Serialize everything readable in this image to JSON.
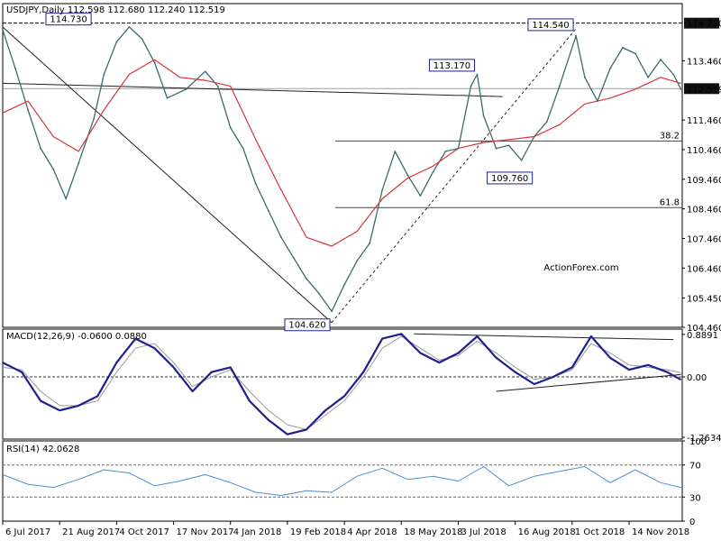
{
  "chart_data": [
    {
      "panel": "price",
      "type": "line",
      "title": "USDJPY,Daily",
      "ohlc_readout": [
        "112.598",
        "112.680",
        "112.240",
        "112.519"
      ],
      "watermark": "ActionForex.com",
      "ylim": [
        104.46,
        115.39
      ],
      "y_ticks": [
        "114.730",
        "113.460",
        "112.519",
        "111.460",
        "110.460",
        "109.460",
        "108.460",
        "107.460",
        "106.460",
        "105.450",
        "104.460"
      ],
      "y_tick_values": [
        114.73,
        113.46,
        112.519,
        111.46,
        110.46,
        109.46,
        108.46,
        107.46,
        106.46,
        105.45,
        104.46
      ],
      "highlighted_ticks": [
        "114.730",
        "112.519"
      ],
      "current_price": 112.519,
      "resistance_line": 114.73,
      "fib_levels": [
        {
          "label": "38.2",
          "value": 110.75
        },
        {
          "label": "61.8",
          "value": 108.5
        }
      ],
      "annotations": [
        {
          "label": "114.730",
          "date_index": 72,
          "value": 114.73
        },
        {
          "label": "104.620",
          "date_index": 260,
          "value": 104.62
        },
        {
          "label": "113.170",
          "date_index": 375,
          "value": 113.17
        },
        {
          "label": "109.760",
          "date_index": 410,
          "value": 109.76
        },
        {
          "label": "114.540",
          "date_index": 453,
          "value": 114.54
        }
      ],
      "series": [
        {
          "name": "price",
          "x": [
            0,
            10,
            20,
            30,
            40,
            50,
            60,
            72,
            80,
            90,
            100,
            110,
            120,
            130,
            145,
            160,
            170,
            180,
            190,
            200,
            210,
            220,
            230,
            240,
            250,
            260,
            270,
            280,
            290,
            300,
            310,
            320,
            330,
            340,
            350,
            360,
            370,
            375,
            380,
            390,
            400,
            410,
            420,
            430,
            440,
            453,
            460,
            470,
            480,
            490,
            500,
            510,
            520,
            530,
            536
          ],
          "values": [
            114.5,
            113.2,
            111.8,
            110.5,
            109.8,
            108.8,
            110.0,
            111.5,
            113.0,
            114.1,
            114.6,
            114.2,
            113.4,
            112.2,
            112.5,
            113.1,
            112.6,
            111.2,
            110.5,
            109.3,
            108.4,
            107.5,
            106.8,
            106.1,
            105.6,
            105.0,
            105.9,
            106.7,
            107.3,
            109.1,
            110.4,
            109.6,
            108.9,
            109.7,
            110.4,
            110.5,
            112.6,
            113.0,
            111.6,
            110.5,
            110.6,
            110.1,
            110.9,
            111.4,
            112.6,
            114.3,
            112.9,
            112.1,
            113.2,
            113.9,
            113.7,
            112.9,
            113.5,
            113.0,
            112.5
          ]
        },
        {
          "name": "SMA",
          "x": [
            0,
            20,
            40,
            60,
            80,
            100,
            120,
            140,
            160,
            180,
            200,
            220,
            240,
            260,
            280,
            300,
            320,
            340,
            360,
            380,
            400,
            420,
            440,
            460,
            480,
            500,
            520,
            536
          ],
          "values": [
            111.7,
            112.1,
            110.9,
            110.4,
            111.8,
            113.0,
            113.5,
            112.9,
            112.8,
            112.6,
            110.8,
            109.1,
            107.5,
            107.2,
            107.7,
            108.8,
            109.5,
            109.9,
            110.5,
            110.7,
            110.8,
            110.9,
            111.3,
            112.0,
            112.2,
            112.5,
            112.9,
            112.7
          ]
        }
      ],
      "trendlines": [
        {
          "name": "upper channel",
          "from": [
            0,
            112.7
          ],
          "to": [
            395,
            112.25
          ]
        },
        {
          "name": "lower channel",
          "from": [
            0,
            114.6
          ],
          "to": [
            260,
            104.62
          ]
        },
        {
          "name": "rising trend (dashed)",
          "from": [
            260,
            104.62
          ],
          "to": [
            453,
            114.54
          ]
        }
      ]
    },
    {
      "panel": "macd",
      "type": "line",
      "title": "MACD(12,26,9) -0.0600 0.0880",
      "ylim": [
        -1.3,
        1.0
      ],
      "y_ticks": [
        "0.8891",
        "0.00",
        "-1.2634"
      ],
      "y_tick_values": [
        0.8891,
        0.0,
        -1.2634
      ],
      "series": [
        {
          "name": "MACD",
          "x": [
            0,
            15,
            30,
            45,
            60,
            75,
            90,
            105,
            120,
            135,
            150,
            165,
            180,
            195,
            210,
            225,
            240,
            255,
            270,
            285,
            300,
            315,
            330,
            345,
            360,
            375,
            390,
            405,
            420,
            435,
            450,
            465,
            480,
            495,
            510,
            525,
            536
          ],
          "values": [
            0.3,
            0.1,
            -0.5,
            -0.7,
            -0.6,
            -0.4,
            0.3,
            0.8,
            0.6,
            0.2,
            -0.3,
            0.1,
            0.2,
            -0.5,
            -0.9,
            -1.2,
            -1.1,
            -0.7,
            -0.4,
            0.1,
            0.8,
            0.9,
            0.5,
            0.3,
            0.5,
            0.85,
            0.4,
            0.1,
            -0.15,
            0.0,
            0.2,
            0.85,
            0.4,
            0.15,
            0.25,
            0.1,
            -0.06
          ]
        },
        {
          "name": "Signal",
          "x": [
            0,
            15,
            30,
            45,
            60,
            75,
            90,
            105,
            120,
            135,
            150,
            165,
            180,
            195,
            210,
            225,
            240,
            255,
            270,
            285,
            300,
            315,
            330,
            345,
            360,
            375,
            390,
            405,
            420,
            435,
            450,
            465,
            480,
            495,
            510,
            525,
            536
          ],
          "values": [
            0.2,
            0.15,
            -0.3,
            -0.6,
            -0.6,
            -0.5,
            0.1,
            0.6,
            0.7,
            0.3,
            -0.2,
            0.0,
            0.15,
            -0.3,
            -0.7,
            -1.0,
            -1.1,
            -0.8,
            -0.5,
            0.0,
            0.6,
            0.85,
            0.6,
            0.35,
            0.45,
            0.75,
            0.5,
            0.2,
            -0.05,
            0.0,
            0.15,
            0.7,
            0.5,
            0.25,
            0.2,
            0.15,
            0.088
          ]
        }
      ],
      "trendlines": [
        {
          "name": "upper",
          "from": [
            325,
            0.9
          ],
          "to": [
            530,
            0.78
          ]
        },
        {
          "name": "lower",
          "from": [
            390,
            -0.3
          ],
          "to": [
            536,
            0.05
          ]
        }
      ]
    },
    {
      "panel": "rsi",
      "type": "line",
      "title": "RSI(14) 42.0628",
      "ylim": [
        0,
        100
      ],
      "y_ticks": [
        "100",
        "70",
        "30",
        "0"
      ],
      "y_tick_values": [
        100,
        70,
        30,
        0
      ],
      "series": [
        {
          "name": "RSI",
          "x": [
            0,
            20,
            40,
            60,
            80,
            100,
            120,
            140,
            160,
            180,
            200,
            220,
            240,
            260,
            280,
            300,
            320,
            340,
            360,
            380,
            400,
            420,
            440,
            460,
            480,
            500,
            520,
            536
          ],
          "values": [
            58,
            46,
            42,
            52,
            64,
            60,
            44,
            50,
            58,
            48,
            36,
            32,
            38,
            36,
            56,
            66,
            52,
            56,
            50,
            68,
            44,
            56,
            62,
            68,
            48,
            64,
            48,
            42
          ]
        }
      ]
    }
  ],
  "x_axis": {
    "labels": [
      "6 Jul 2017",
      "21 Aug 2017",
      "4 Oct 2017",
      "17 Nov 2017",
      "4 Jan 2018",
      "19 Feb 2018",
      "4 Apr 2018",
      "18 May 2018",
      "3 Jul 2018",
      "16 Aug 2018",
      "1 Oct 2018",
      "14 Nov 2018"
    ],
    "positions": [
      0,
      45,
      90,
      135,
      180,
      225,
      270,
      315,
      360,
      405,
      450,
      495
    ],
    "range": [
      0,
      537
    ]
  },
  "colors": {
    "price": "#3b6b6b",
    "sma": "#d6343a",
    "macd": "#1f1f8f",
    "signal": "#999999",
    "rsi": "#4a8fd4",
    "label_border": "#1f1f8f",
    "grid_line": "#9e9e9e"
  }
}
